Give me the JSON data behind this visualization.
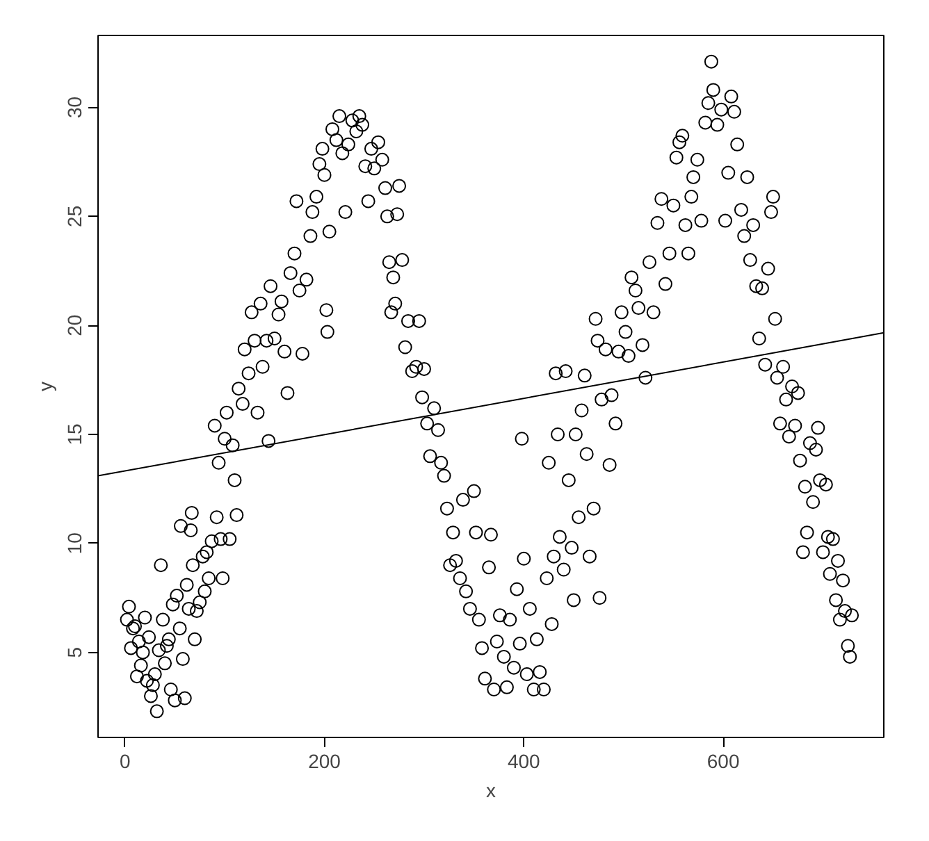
{
  "chart_data": {
    "type": "scatter",
    "xlabel": "x",
    "ylabel": "y",
    "xlim": [
      -27,
      761
    ],
    "ylim": [
      1.1,
      33.3
    ],
    "xticks": [
      0,
      200,
      400,
      600
    ],
    "yticks": [
      5,
      10,
      15,
      20,
      25,
      30
    ],
    "grid": false,
    "series": [
      {
        "marker": "circle",
        "color": "#000000",
        "x": [
          2,
          4,
          6,
          8,
          10,
          12,
          14,
          16,
          18,
          20,
          22,
          24,
          26,
          28,
          30,
          32,
          34,
          36,
          38,
          40,
          42,
          44,
          46,
          48,
          50,
          52,
          55,
          56,
          58,
          60,
          62,
          64,
          66,
          67,
          68,
          70,
          72,
          75,
          78,
          80,
          82,
          84,
          87,
          90,
          92,
          94,
          96,
          98,
          100,
          102,
          105,
          108,
          110,
          112,
          114,
          118,
          120,
          124,
          127,
          130,
          133,
          136,
          138,
          142,
          144,
          146,
          150,
          154,
          157,
          160,
          163,
          166,
          170,
          172,
          175,
          178,
          182,
          186,
          188,
          192,
          195,
          198,
          200,
          202,
          203,
          205,
          208,
          212,
          215,
          218,
          221,
          224,
          228,
          232,
          235,
          238,
          241,
          244,
          247,
          250,
          254,
          258,
          261,
          263,
          265,
          267,
          269,
          271,
          273,
          275,
          278,
          281,
          284,
          288,
          292,
          295,
          298,
          300,
          303,
          306,
          310,
          314,
          317,
          320,
          323,
          326,
          329,
          332,
          336,
          339,
          342,
          346,
          350,
          352,
          355,
          358,
          361,
          365,
          367,
          370,
          373,
          376,
          380,
          383,
          386,
          390,
          393,
          396,
          398,
          400,
          403,
          406,
          410,
          413,
          416,
          420,
          423,
          425,
          428,
          430,
          432,
          434,
          436,
          440,
          442,
          445,
          448,
          450,
          452,
          455,
          458,
          461,
          463,
          466,
          470,
          472,
          474,
          476,
          478,
          482,
          486,
          488,
          492,
          495,
          498,
          502,
          505,
          508,
          512,
          515,
          519,
          522,
          526,
          530,
          534,
          538,
          542,
          546,
          550,
          553,
          556,
          559,
          562,
          565,
          568,
          570,
          574,
          578,
          582,
          585,
          588,
          590,
          594,
          598,
          602,
          605,
          608,
          611,
          614,
          618,
          621,
          624,
          627,
          630,
          633,
          636,
          639,
          642,
          645,
          648,
          650,
          652,
          654,
          657,
          660,
          663,
          666,
          669,
          672,
          675,
          677,
          680,
          682,
          684,
          687,
          690,
          693,
          695,
          697,
          700,
          703,
          705,
          707,
          710,
          713,
          715,
          717,
          720,
          722,
          725,
          727,
          729
        ],
        "values": [
          6.5,
          7.1,
          5.2,
          6.1,
          6.2,
          3.9,
          5.5,
          4.4,
          5.0,
          6.6,
          3.7,
          5.7,
          3.0,
          3.5,
          4.0,
          2.3,
          5.1,
          9.0,
          6.5,
          4.5,
          5.3,
          5.6,
          3.3,
          7.2,
          2.8,
          7.6,
          6.1,
          10.8,
          4.7,
          2.9,
          8.1,
          7.0,
          10.6,
          11.4,
          9.0,
          5.6,
          6.9,
          7.3,
          9.4,
          7.8,
          9.6,
          8.4,
          10.1,
          15.4,
          11.2,
          13.7,
          10.2,
          8.4,
          14.8,
          16.0,
          10.2,
          14.5,
          12.9,
          11.3,
          17.1,
          16.4,
          18.9,
          17.8,
          20.6,
          19.3,
          16.0,
          21.0,
          18.1,
          19.3,
          14.7,
          21.8,
          19.4,
          20.5,
          21.1,
          18.8,
          16.9,
          22.4,
          23.3,
          25.7,
          21.6,
          18.7,
          22.1,
          24.1,
          25.2,
          25.9,
          27.4,
          28.1,
          26.9,
          20.7,
          19.7,
          24.3,
          29.0,
          28.5,
          29.6,
          27.9,
          25.2,
          28.3,
          29.4,
          28.9,
          29.6,
          29.2,
          27.3,
          25.7,
          28.1,
          27.2,
          28.4,
          27.6,
          26.3,
          25.0,
          22.9,
          20.6,
          22.2,
          21.0,
          25.1,
          26.4,
          23.0,
          19.0,
          20.2,
          17.9,
          18.1,
          20.2,
          16.7,
          18.0,
          15.5,
          14.0,
          16.2,
          15.2,
          13.7,
          13.1,
          11.6,
          9.0,
          10.5,
          9.2,
          8.4,
          12.0,
          7.8,
          7.0,
          12.4,
          10.5,
          6.5,
          5.2,
          3.8,
          8.9,
          10.4,
          3.3,
          5.5,
          6.7,
          4.8,
          3.4,
          6.5,
          4.3,
          7.9,
          5.4,
          14.8,
          9.3,
          4.0,
          7.0,
          3.3,
          5.6,
          4.1,
          3.3,
          8.4,
          13.7,
          6.3,
          9.4,
          17.8,
          15.0,
          10.3,
          8.8,
          17.9,
          12.9,
          9.8,
          7.4,
          15.0,
          11.2,
          16.1,
          17.7,
          14.1,
          9.4,
          11.6,
          20.3,
          19.3,
          7.5,
          16.6,
          18.9,
          13.6,
          16.8,
          15.5,
          18.8,
          20.6,
          19.7,
          18.6,
          22.2,
          21.6,
          20.8,
          19.1,
          17.6,
          22.9,
          20.6,
          24.7,
          25.8,
          21.9,
          23.3,
          25.5,
          27.7,
          28.4,
          28.7,
          24.6,
          23.3,
          25.9,
          26.8,
          27.6,
          24.8,
          29.3,
          30.2,
          32.1,
          30.8,
          29.2,
          29.9,
          24.8,
          27.0,
          30.5,
          29.8,
          28.3,
          25.3,
          24.1,
          26.8,
          23.0,
          24.6,
          21.8,
          19.4,
          21.7,
          18.2,
          22.6,
          25.2,
          25.9,
          20.3,
          17.6,
          15.5,
          18.1,
          16.6,
          14.9,
          17.2,
          15.4,
          16.9,
          13.8,
          9.6,
          12.6,
          10.5,
          14.6,
          11.9,
          14.3,
          15.3,
          12.9,
          9.6,
          12.7,
          10.3,
          8.6,
          10.2,
          7.4,
          9.2,
          6.5,
          8.3,
          6.9,
          5.3,
          4.8,
          6.7
        ]
      },
      {
        "type": "line",
        "color": "#000000",
        "x": [
          -27,
          761
        ],
        "values": [
          13.1,
          19.66
        ]
      }
    ]
  }
}
